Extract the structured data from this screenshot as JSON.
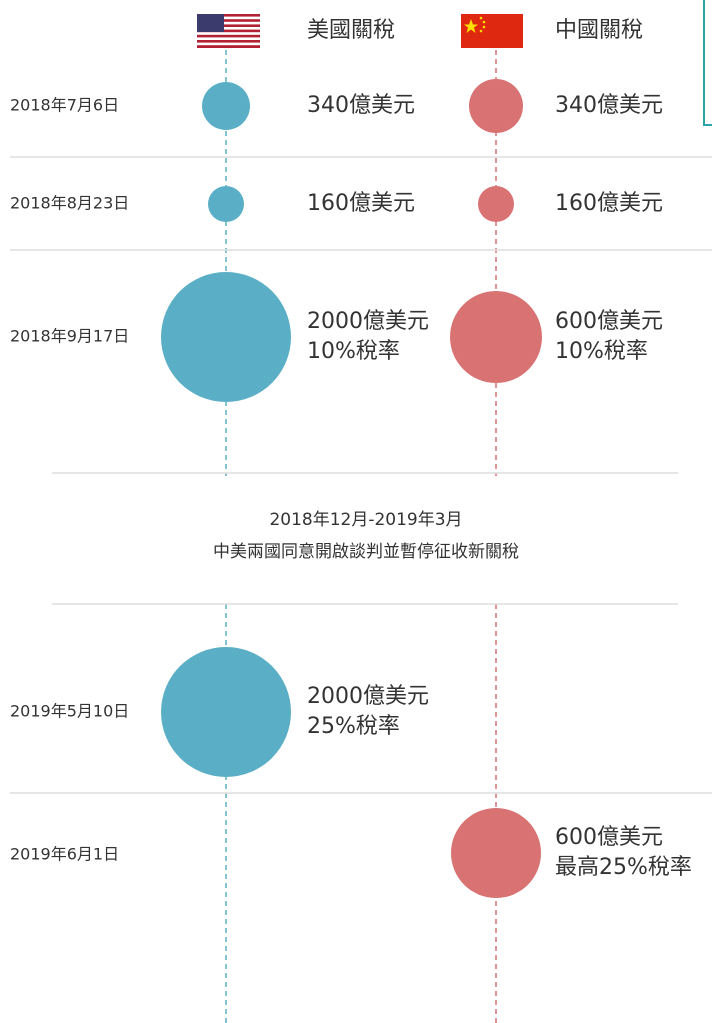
{
  "header": {
    "us_label": "美國關稅",
    "cn_label": "中國關稅"
  },
  "rows": [
    {
      "date": "2018年7月6日",
      "us": [
        "340億美元"
      ],
      "cn": [
        "340億美元"
      ]
    },
    {
      "date": "2018年8月23日",
      "us": [
        "160億美元"
      ],
      "cn": [
        "160億美元"
      ]
    },
    {
      "date": "2018年9月17日",
      "us": [
        "2000億美元",
        "10%稅率"
      ],
      "cn": [
        "600億美元",
        "10%稅率"
      ]
    },
    {
      "date": "2019年5月10日",
      "us": [
        "2000億美元",
        "25%稅率"
      ]
    },
    {
      "date": "2019年6月1日",
      "cn": [
        "600億美元",
        "最高25%稅率"
      ]
    }
  ],
  "middle": {
    "period": "2018年12月-2019年3月",
    "note": "中美兩國同意開啟談判並暫停征收新關稅"
  }
}
